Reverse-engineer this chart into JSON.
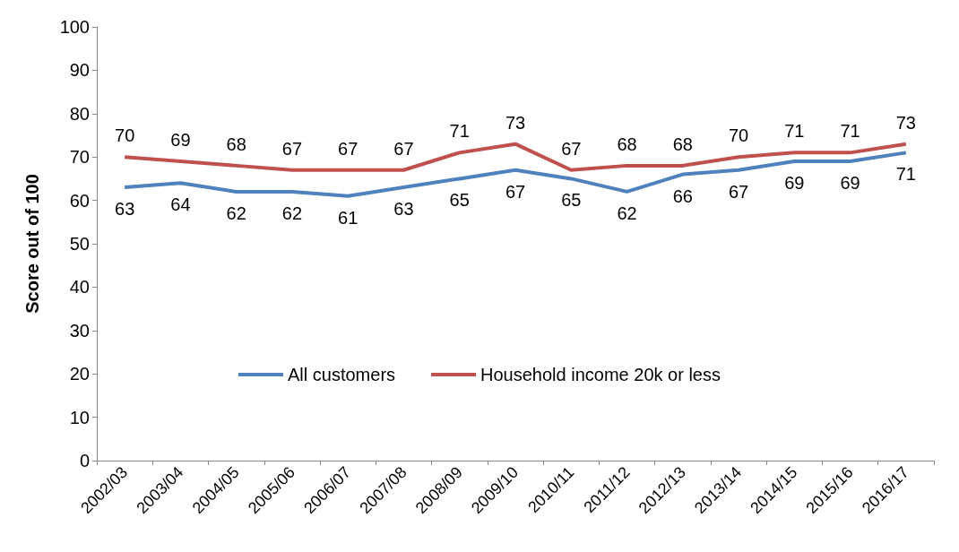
{
  "chart_data": {
    "type": "line",
    "ylabel": "Score out of 100",
    "categories": [
      "2002/03",
      "2003/04",
      "2004/05",
      "2005/06",
      "2006/07",
      "2007/08",
      "2008/09",
      "2009/10",
      "2010/11",
      "2011/12",
      "2012/13",
      "2013/14",
      "2014/15",
      "2015/16",
      "2016/17"
    ],
    "series": [
      {
        "name": "All customers",
        "color": "#4f81bd",
        "values": [
          63,
          64,
          62,
          62,
          61,
          63,
          65,
          67,
          65,
          62,
          66,
          67,
          69,
          69,
          71
        ]
      },
      {
        "name": "Household income 20k or less",
        "color": "#c0504d",
        "values": [
          70,
          69,
          68,
          67,
          67,
          67,
          71,
          73,
          67,
          68,
          68,
          70,
          71,
          71,
          73
        ]
      }
    ],
    "ylim": [
      0,
      100
    ],
    "yticks": [
      0,
      10,
      20,
      30,
      40,
      50,
      60,
      70,
      80,
      90,
      100
    ],
    "data_labels": true,
    "legend": "bottom",
    "marker": "none",
    "line_style": "solid",
    "grid": false
  }
}
